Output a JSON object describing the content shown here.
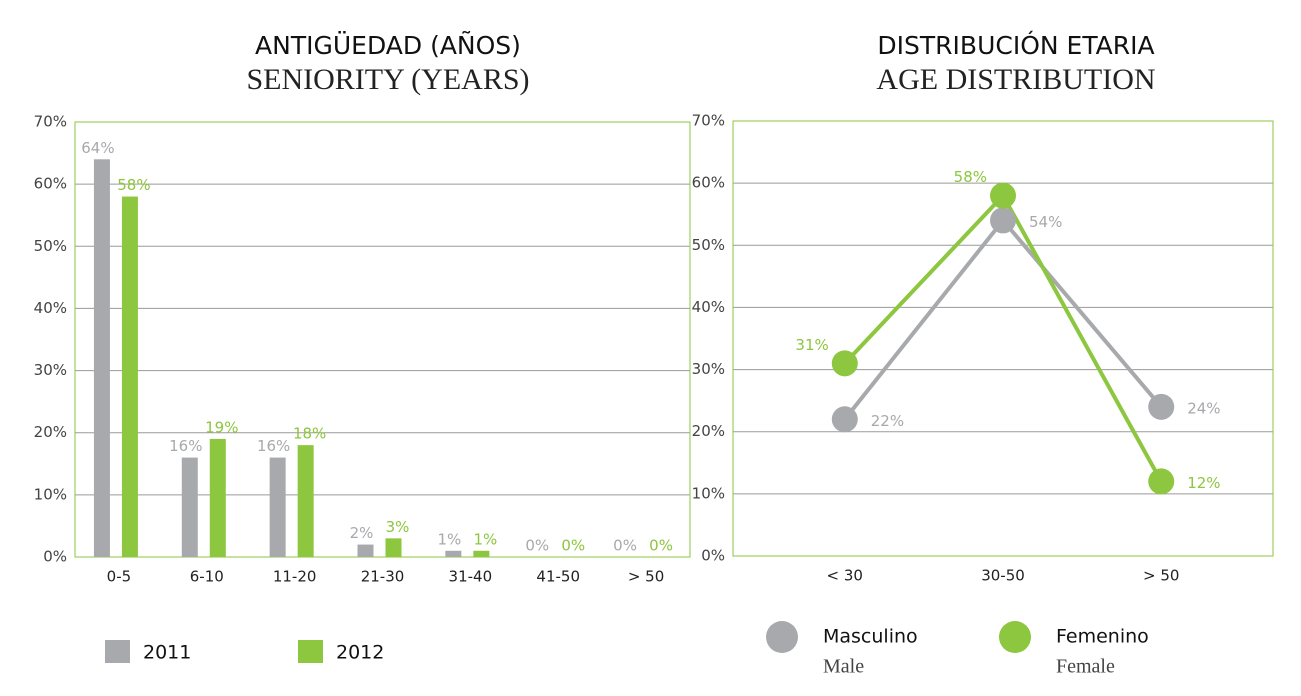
{
  "chart_data": [
    {
      "type": "bar",
      "title": "ANTIGÜEDAD (AÑOS)",
      "subtitle": "SENIORITY (YEARS)",
      "categories": [
        "0-5",
        "6-10",
        "11-20",
        "21-30",
        "31-40",
        "41-50",
        "> 50"
      ],
      "series": [
        {
          "name": "2011",
          "color": "#a7a9ac",
          "values": [
            64,
            16,
            16,
            2,
            1,
            0,
            0
          ],
          "value_labels": [
            "64%",
            "16%",
            "16%",
            "2%",
            "1%",
            "0%",
            "0%"
          ]
        },
        {
          "name": "2012",
          "color": "#8dc63f",
          "values": [
            58,
            19,
            18,
            3,
            1,
            0,
            0
          ],
          "value_labels": [
            "58%",
            "19%",
            "18%",
            "3%",
            "1%",
            "0%",
            "0%"
          ]
        }
      ],
      "ylim": [
        0,
        70
      ],
      "yticks": [
        {
          "value": 0,
          "label": "0%"
        },
        {
          "value": 10,
          "label": "10%"
        },
        {
          "value": 20,
          "label": "20%"
        },
        {
          "value": 30,
          "label": "30%"
        },
        {
          "value": 40,
          "label": "40%"
        },
        {
          "value": 50,
          "label": "50%"
        },
        {
          "value": 60,
          "label": "60%"
        },
        {
          "value": 70,
          "label": "70%"
        }
      ],
      "grid": true
    },
    {
      "type": "line",
      "title": "DISTRIBUCIÓN ETARIA",
      "subtitle": "AGE DISTRIBUTION",
      "categories": [
        "< 30",
        "30-50",
        "> 50"
      ],
      "series": [
        {
          "name": "Masculino",
          "subname": "Male",
          "color": "#a7a9ac",
          "values": [
            22,
            54,
            24
          ],
          "value_labels": [
            "22%",
            "54%",
            "24%"
          ]
        },
        {
          "name": "Femenino",
          "subname": "Female",
          "color": "#8dc63f",
          "values": [
            31,
            58,
            12
          ],
          "value_labels": [
            "31%",
            "58%",
            "12%"
          ]
        }
      ],
      "ylim": [
        0,
        70
      ],
      "yticks": [
        {
          "value": 0,
          "label": "0%"
        },
        {
          "value": 10,
          "label": "10%"
        },
        {
          "value": 20,
          "label": "20%"
        },
        {
          "value": 30,
          "label": "30%"
        },
        {
          "value": 40,
          "label": "40%"
        },
        {
          "value": 50,
          "label": "50%"
        },
        {
          "value": 60,
          "label": "60%"
        },
        {
          "value": 70,
          "label": "70%"
        }
      ],
      "grid": true
    }
  ]
}
